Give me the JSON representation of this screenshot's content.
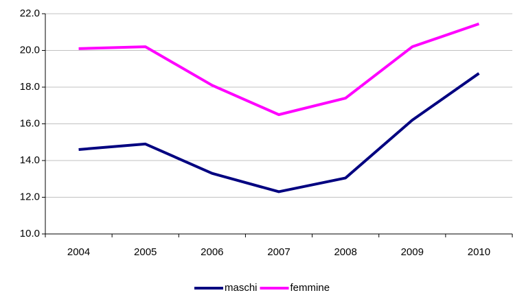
{
  "chart_data": {
    "type": "line",
    "categories": [
      "2004",
      "2005",
      "2006",
      "2007",
      "2008",
      "2009",
      "2010"
    ],
    "series": [
      {
        "name": "maschi",
        "color": "#000080",
        "values": [
          14.6,
          14.9,
          13.3,
          12.3,
          13.05,
          16.2,
          18.75
        ]
      },
      {
        "name": "femmine",
        "color": "#ff00ff",
        "values": [
          20.1,
          20.2,
          18.1,
          16.5,
          17.4,
          20.2,
          21.45
        ]
      }
    ],
    "ylim": [
      10,
      22
    ],
    "yticks": [
      {
        "value": 10,
        "label": "10.0"
      },
      {
        "value": 12,
        "label": "12.0"
      },
      {
        "value": 14,
        "label": "14.0"
      },
      {
        "value": 16,
        "label": "16.0"
      },
      {
        "value": 18,
        "label": "18.0"
      },
      {
        "value": 20,
        "label": "20.0"
      },
      {
        "value": 22,
        "label": "22.0"
      }
    ],
    "grid": true,
    "legend": "bottom"
  }
}
